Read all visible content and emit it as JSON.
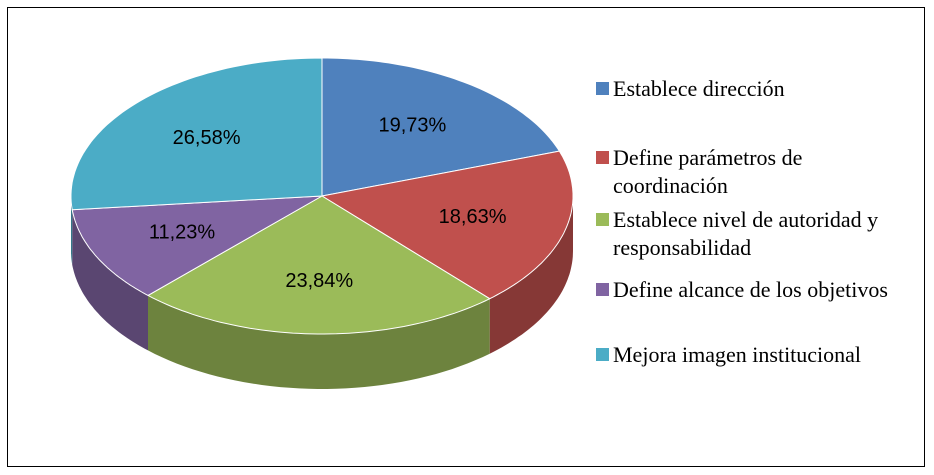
{
  "chart_data": {
    "type": "pie",
    "categories": [
      "Establece dirección",
      "Define parámetros de coordinación",
      "Establece nivel de autoridad y responsabilidad",
      "Define alcance de los objetivos",
      "Mejora imagen institucional"
    ],
    "values": [
      19.73,
      18.63,
      23.84,
      11.23,
      26.58
    ],
    "value_labels": [
      "19,73%",
      "18,63%",
      "23,84%",
      "11,23%",
      "26,58%"
    ],
    "colors": [
      "#4f81bd",
      "#c0504d",
      "#9bbb59",
      "#8064a2",
      "#4bacc6"
    ],
    "legend": "right"
  }
}
